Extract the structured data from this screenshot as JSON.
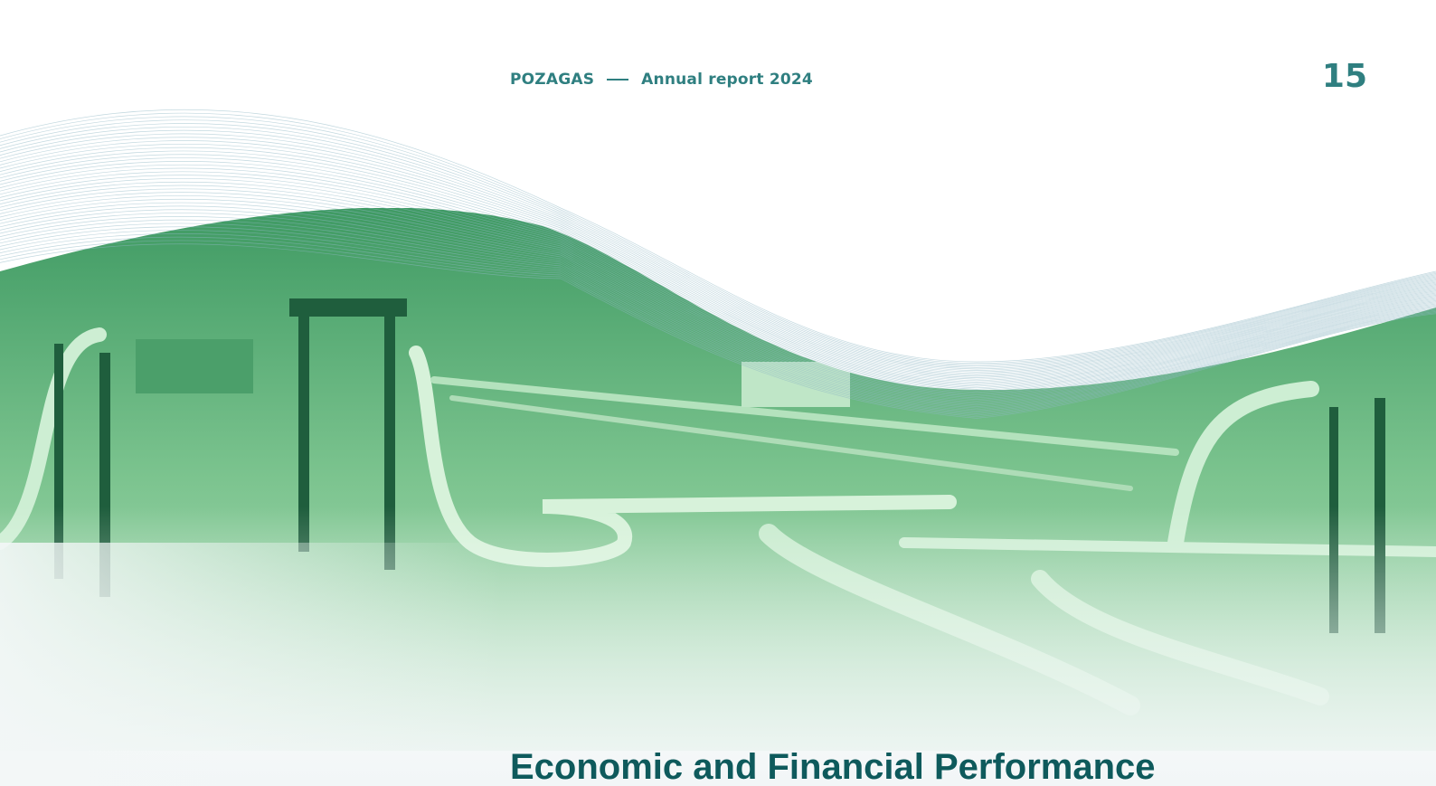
{
  "header": {
    "company": "POZAGAS",
    "report": "Annual report 2024",
    "page_number": "15"
  },
  "section": {
    "title": "Economic and Financial Performance"
  }
}
